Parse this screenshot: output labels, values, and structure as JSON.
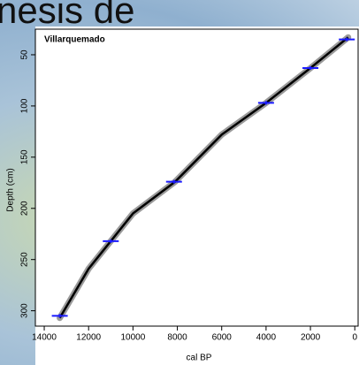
{
  "background_text": "nesis de",
  "chart_data": {
    "type": "line",
    "title": "Villarquemado",
    "x_label": "cal BP",
    "y_label": "Depth (cm)",
    "x": [
      300,
      2000,
      4000,
      6000,
      8100,
      10000,
      11000,
      12000,
      13300
    ],
    "values": [
      33,
      63,
      97,
      128,
      174,
      205,
      232,
      259,
      307
    ],
    "color": "#000000",
    "band_color": "#9a9a9a",
    "dates_x": [
      360,
      2000,
      4000,
      8150,
      11000,
      13300
    ],
    "dates_depth": [
      35,
      63,
      97,
      174,
      232,
      305
    ],
    "point_color": "#1a1aff",
    "xlim": [
      14400,
      -150
    ],
    "ylim": [
      315,
      25
    ],
    "xticks": [
      14000,
      12000,
      10000,
      8000,
      6000,
      4000,
      2000,
      0
    ],
    "yticks": [
      50,
      100,
      150,
      200,
      250,
      300
    ]
  }
}
